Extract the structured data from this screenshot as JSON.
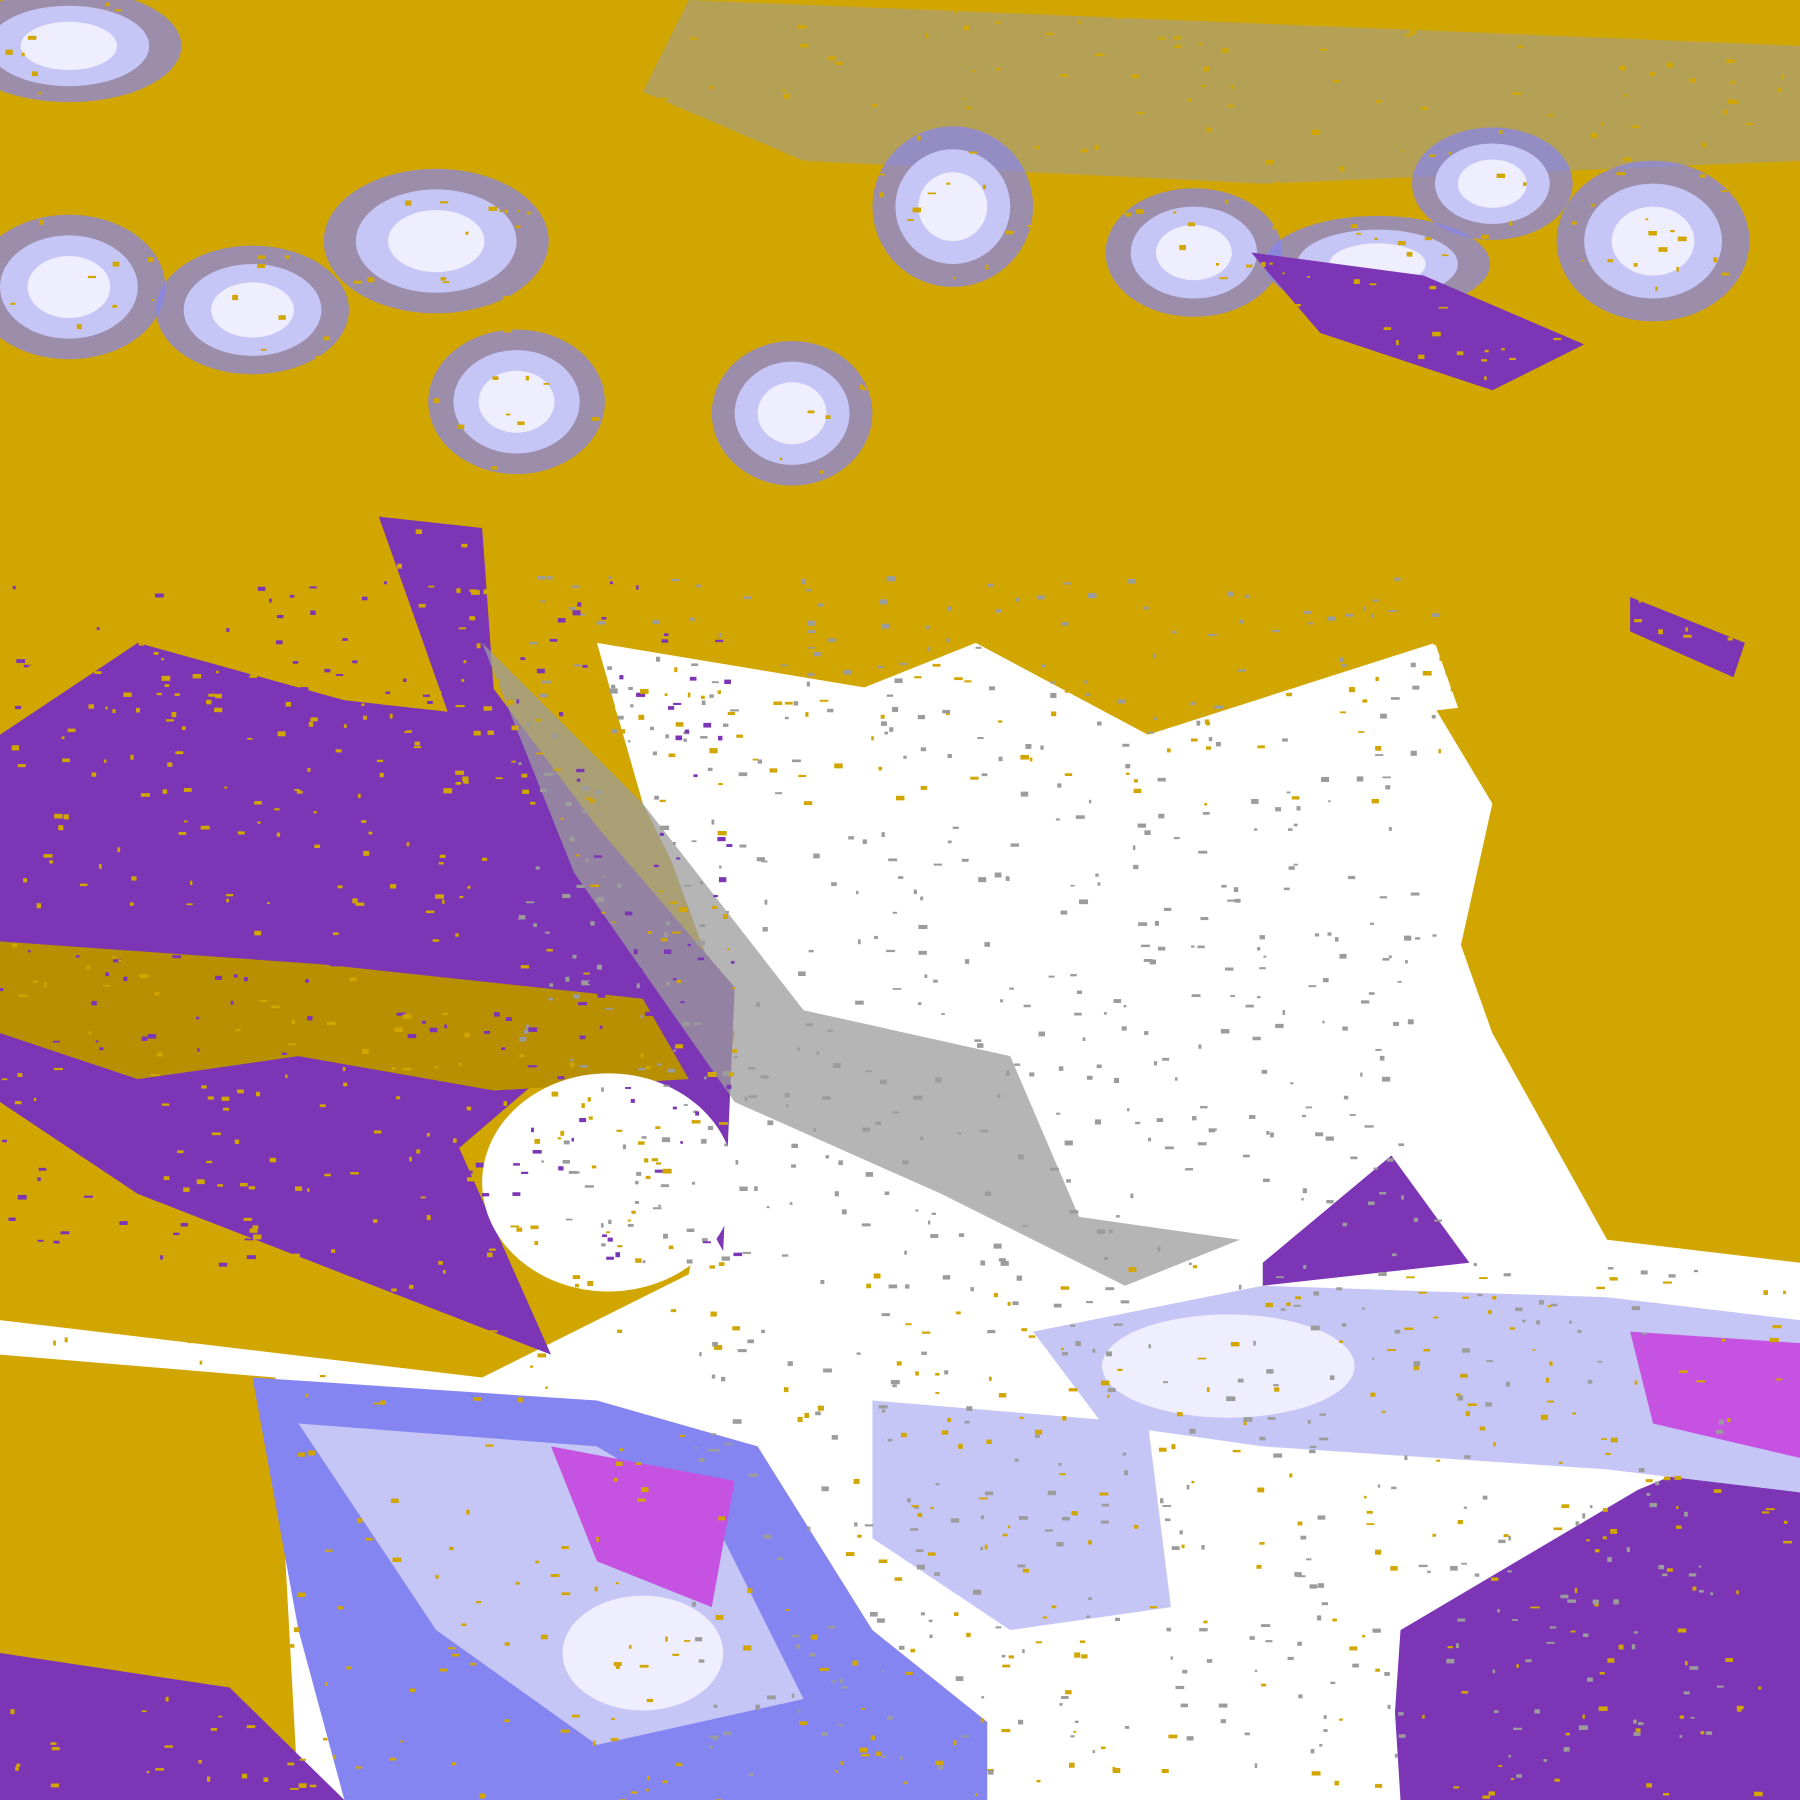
{
  "palette": {
    "background": "#ffffff",
    "gold": "#d2a600",
    "dark_gold": "#b88f00",
    "purple": "#7b35b5",
    "magenta": "#c552e0",
    "periwinkle": "#8585f2",
    "lavender": "#c6c6f6",
    "pale": "#eeeefe",
    "gray": "#9c9c9c"
  }
}
